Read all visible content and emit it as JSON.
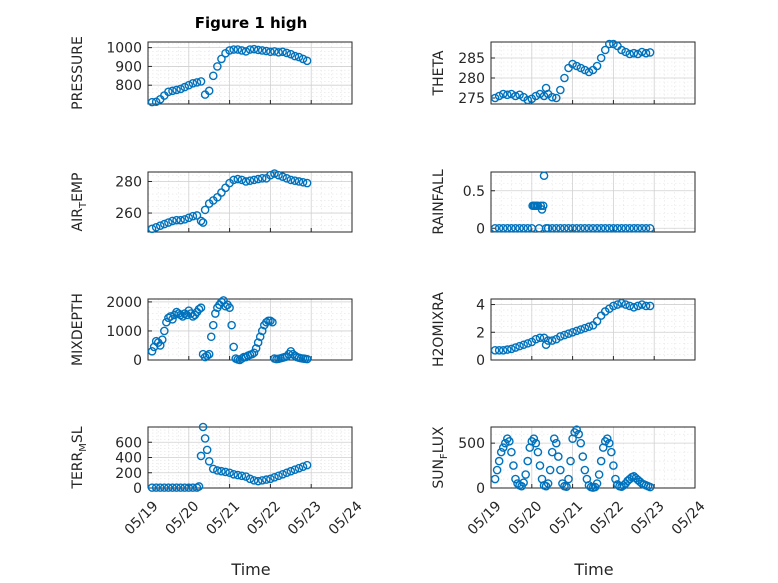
{
  "figure": {
    "title": "Figure 1 high",
    "xlabel": "Time",
    "colors": {
      "marker": "#0072bd",
      "axis": "#262626",
      "grid": "#d0d0d0"
    },
    "x_tick_labels": [
      "05/19",
      "05/20",
      "05/21",
      "05/22",
      "05/23",
      "05/24"
    ]
  },
  "chart_data": [
    {
      "id": "pressure",
      "type": "scatter",
      "ylabel": "PRESSURE",
      "ylim": [
        700,
        1030
      ],
      "yticks": [
        800,
        900,
        1000
      ],
      "grid": "major+minor",
      "x": [
        0.1,
        0.2,
        0.3,
        0.4,
        0.5,
        0.6,
        0.7,
        0.8,
        0.9,
        1.0,
        1.1,
        1.2,
        1.3,
        1.4,
        1.5,
        1.6,
        1.7,
        1.8,
        1.9,
        2.0,
        2.1,
        2.2,
        2.3,
        2.4,
        2.5,
        2.6,
        2.7,
        2.8,
        2.9,
        3.0,
        3.1,
        3.2,
        3.3,
        3.4,
        3.5,
        3.6,
        3.7,
        3.8,
        3.9
      ],
      "y": [
        710,
        712,
        725,
        745,
        765,
        770,
        775,
        780,
        790,
        800,
        810,
        815,
        820,
        750,
        770,
        850,
        900,
        940,
        970,
        985,
        990,
        990,
        985,
        980,
        990,
        992,
        988,
        985,
        982,
        978,
        980,
        975,
        978,
        972,
        965,
        955,
        950,
        940,
        930
      ]
    },
    {
      "id": "theta",
      "type": "scatter",
      "ylabel": "THETA",
      "ylim": [
        273.5,
        289
      ],
      "yticks": [
        275,
        280,
        285
      ],
      "grid": "major+minor",
      "x": [
        0.1,
        0.2,
        0.3,
        0.4,
        0.5,
        0.6,
        0.7,
        0.8,
        0.9,
        1.0,
        1.1,
        1.2,
        1.3,
        1.35,
        1.4,
        1.5,
        1.6,
        1.7,
        1.8,
        1.9,
        2.0,
        2.1,
        2.2,
        2.3,
        2.4,
        2.5,
        2.6,
        2.7,
        2.8,
        2.9,
        3.0,
        3.1,
        3.2,
        3.3,
        3.4,
        3.5,
        3.6,
        3.7,
        3.8,
        3.9
      ],
      "y": [
        275,
        275.5,
        276,
        275.8,
        276,
        275.5,
        275.8,
        275.2,
        274.5,
        274.8,
        275.5,
        276,
        275.5,
        277.5,
        276,
        275.2,
        275,
        277,
        280,
        282.5,
        283.5,
        283,
        282.5,
        282,
        281.5,
        282,
        283,
        285,
        287,
        288.5,
        288.5,
        288,
        287,
        286.5,
        286,
        286.2,
        286,
        286.5,
        286.2,
        286.4
      ]
    },
    {
      "id": "air_temp",
      "type": "scatter",
      "ylabel": "AIR",
      "ylabel_sub": "T",
      "ylabel_tail": "EMP",
      "ylim": [
        248,
        286
      ],
      "yticks": [
        260,
        280
      ],
      "grid": "major+minor",
      "x": [
        0.1,
        0.2,
        0.3,
        0.4,
        0.5,
        0.6,
        0.7,
        0.8,
        0.9,
        1.0,
        1.1,
        1.2,
        1.3,
        1.35,
        1.4,
        1.5,
        1.6,
        1.7,
        1.8,
        1.9,
        2.0,
        2.1,
        2.2,
        2.3,
        2.4,
        2.5,
        2.6,
        2.7,
        2.8,
        2.9,
        3.0,
        3.1,
        3.2,
        3.3,
        3.4,
        3.5,
        3.6,
        3.7,
        3.8,
        3.9
      ],
      "y": [
        250,
        251,
        252,
        253,
        254,
        255,
        255.5,
        255.5,
        256,
        257,
        258,
        258.5,
        255,
        254,
        262,
        266,
        268,
        270,
        273,
        276,
        279,
        281,
        281.5,
        281,
        280,
        280.5,
        281,
        281.5,
        282,
        282,
        284,
        285,
        284,
        283,
        282,
        281,
        280.5,
        280,
        279.5,
        279
      ]
    },
    {
      "id": "rainfall",
      "type": "scatter",
      "ylabel": "RAINFALL",
      "ylim": [
        -0.05,
        0.75
      ],
      "yticks": [
        0,
        0.5
      ],
      "ytick_labels": [
        "0",
        "0.5"
      ],
      "grid": "major+minor",
      "x": [
        0.1,
        0.2,
        0.3,
        0.4,
        0.5,
        0.6,
        0.7,
        0.8,
        0.9,
        1.0,
        1.02,
        1.05,
        1.08,
        1.12,
        1.15,
        1.18,
        1.22,
        1.25,
        1.28,
        1.3,
        1.35,
        1.4,
        1.5,
        1.6,
        1.7,
        1.8,
        1.9,
        2.0,
        2.1,
        2.2,
        2.3,
        2.4,
        2.5,
        2.6,
        2.7,
        2.8,
        2.9,
        3.0,
        3.1,
        3.2,
        3.3,
        3.4,
        3.5,
        3.6,
        3.7,
        3.8,
        3.9
      ],
      "y": [
        0,
        0,
        0,
        0,
        0,
        0,
        0,
        0,
        0,
        0,
        0.3,
        0.3,
        0.3,
        0.3,
        0.3,
        0,
        0.3,
        0.25,
        0.3,
        0.7,
        0,
        0,
        0,
        0,
        0,
        0,
        0,
        0,
        0,
        0,
        0,
        0,
        0,
        0,
        0,
        0,
        0,
        0,
        0,
        0,
        0,
        0,
        0,
        0,
        0,
        0,
        0
      ]
    },
    {
      "id": "mixdepth",
      "type": "scatter",
      "ylabel": "MIXDEPTH",
      "ylim": [
        0,
        2100
      ],
      "yticks": [
        0,
        1000,
        2000
      ],
      "grid": "major+minor",
      "x": [
        0.1,
        0.15,
        0.2,
        0.25,
        0.3,
        0.35,
        0.4,
        0.45,
        0.5,
        0.55,
        0.6,
        0.65,
        0.7,
        0.75,
        0.8,
        0.85,
        0.9,
        0.95,
        1.0,
        1.05,
        1.1,
        1.15,
        1.2,
        1.25,
        1.3,
        1.35,
        1.4,
        1.45,
        1.5,
        1.55,
        1.6,
        1.65,
        1.7,
        1.75,
        1.8,
        1.85,
        1.9,
        1.95,
        2.0,
        2.05,
        2.1,
        2.15,
        2.2,
        2.25,
        2.3,
        2.35,
        2.4,
        2.45,
        2.5,
        2.55,
        2.6,
        2.65,
        2.7,
        2.75,
        2.8,
        2.85,
        2.9,
        2.95,
        3.0,
        3.05,
        3.1,
        3.15,
        3.2,
        3.25,
        3.3,
        3.35,
        3.4,
        3.45,
        3.5,
        3.55,
        3.6,
        3.65,
        3.7,
        3.75,
        3.8,
        3.85,
        3.9
      ],
      "y": [
        300,
        450,
        650,
        600,
        500,
        700,
        1000,
        1300,
        1450,
        1500,
        1400,
        1550,
        1650,
        1600,
        1550,
        1500,
        1600,
        1550,
        1700,
        1600,
        1500,
        1550,
        1650,
        1750,
        1800,
        200,
        100,
        150,
        200,
        800,
        1200,
        1600,
        1800,
        1900,
        2000,
        2050,
        1850,
        1900,
        1800,
        1200,
        450,
        50,
        20,
        0,
        50,
        100,
        100,
        150,
        180,
        200,
        250,
        400,
        600,
        800,
        1000,
        1200,
        1300,
        1350,
        1350,
        1300,
        50,
        30,
        40,
        60,
        80,
        100,
        120,
        200,
        300,
        200,
        150,
        100,
        80,
        60,
        50,
        40,
        30
      ]
    },
    {
      "id": "h2omixra",
      "type": "scatter",
      "ylabel": "H2OMIXRA",
      "ylim": [
        0,
        4.4
      ],
      "yticks": [
        0,
        2,
        4
      ],
      "grid": "major+minor",
      "x": [
        0.1,
        0.2,
        0.3,
        0.4,
        0.5,
        0.6,
        0.7,
        0.8,
        0.9,
        1.0,
        1.1,
        1.2,
        1.3,
        1.35,
        1.4,
        1.5,
        1.6,
        1.7,
        1.8,
        1.9,
        2.0,
        2.1,
        2.2,
        2.3,
        2.4,
        2.5,
        2.6,
        2.7,
        2.8,
        2.9,
        3.0,
        3.1,
        3.2,
        3.3,
        3.4,
        3.5,
        3.6,
        3.7,
        3.8,
        3.9
      ],
      "y": [
        0.7,
        0.7,
        0.7,
        0.75,
        0.8,
        0.9,
        1.0,
        1.1,
        1.2,
        1.3,
        1.5,
        1.6,
        1.6,
        1.1,
        1.4,
        1.4,
        1.5,
        1.7,
        1.8,
        1.9,
        2.0,
        2.1,
        2.2,
        2.3,
        2.4,
        2.5,
        2.8,
        3.2,
        3.5,
        3.7,
        3.9,
        4.0,
        4.1,
        4.0,
        3.9,
        3.8,
        3.9,
        4.0,
        3.9,
        3.9
      ]
    },
    {
      "id": "terr_msl",
      "type": "scatter",
      "ylabel": "TERR",
      "ylabel_sub": "M",
      "ylabel_tail": "SL",
      "ylim": [
        0,
        800
      ],
      "yticks": [
        0,
        200,
        400,
        600
      ],
      "grid": "major+minor",
      "x": [
        0.1,
        0.2,
        0.3,
        0.4,
        0.5,
        0.6,
        0.7,
        0.8,
        0.9,
        1.0,
        1.1,
        1.2,
        1.25,
        1.3,
        1.35,
        1.4,
        1.45,
        1.5,
        1.6,
        1.7,
        1.8,
        1.9,
        2.0,
        2.1,
        2.2,
        2.3,
        2.4,
        2.5,
        2.6,
        2.7,
        2.8,
        2.9,
        3.0,
        3.1,
        3.2,
        3.3,
        3.4,
        3.5,
        3.6,
        3.7,
        3.8,
        3.9
      ],
      "y": [
        5,
        5,
        5,
        5,
        5,
        5,
        5,
        5,
        5,
        5,
        5,
        5,
        20,
        420,
        800,
        650,
        500,
        350,
        250,
        230,
        220,
        210,
        200,
        180,
        170,
        160,
        150,
        120,
        100,
        90,
        100,
        110,
        120,
        140,
        160,
        180,
        200,
        220,
        240,
        260,
        280,
        300
      ]
    },
    {
      "id": "sun_flux",
      "type": "scatter",
      "ylabel": "SUN",
      "ylabel_sub": "F",
      "ylabel_tail": "LUX",
      "ylim": [
        0,
        680
      ],
      "yticks": [
        0,
        500
      ],
      "grid": "major+minor",
      "x": [
        0.1,
        0.15,
        0.2,
        0.25,
        0.3,
        0.35,
        0.4,
        0.45,
        0.5,
        0.55,
        0.6,
        0.65,
        0.7,
        0.75,
        0.8,
        0.85,
        0.9,
        0.95,
        1.0,
        1.05,
        1.1,
        1.15,
        1.2,
        1.25,
        1.3,
        1.35,
        1.4,
        1.45,
        1.5,
        1.55,
        1.6,
        1.65,
        1.7,
        1.75,
        1.8,
        1.85,
        1.9,
        1.95,
        2.0,
        2.05,
        2.1,
        2.15,
        2.2,
        2.25,
        2.3,
        2.35,
        2.4,
        2.45,
        2.5,
        2.55,
        2.6,
        2.65,
        2.7,
        2.75,
        2.8,
        2.85,
        2.9,
        2.95,
        3.0,
        3.05,
        3.1,
        3.15,
        3.2,
        3.25,
        3.3,
        3.35,
        3.4,
        3.45,
        3.5,
        3.55,
        3.6,
        3.65,
        3.7,
        3.75,
        3.8,
        3.85,
        3.9
      ],
      "y": [
        100,
        200,
        300,
        400,
        450,
        500,
        550,
        520,
        400,
        250,
        100,
        50,
        30,
        20,
        60,
        150,
        300,
        450,
        520,
        550,
        500,
        400,
        250,
        100,
        30,
        20,
        50,
        200,
        400,
        550,
        500,
        350,
        200,
        50,
        20,
        15,
        100,
        300,
        550,
        620,
        650,
        600,
        500,
        350,
        200,
        100,
        30,
        10,
        5,
        10,
        50,
        150,
        300,
        450,
        520,
        550,
        500,
        400,
        250,
        100,
        40,
        20,
        15,
        30,
        50,
        80,
        100,
        120,
        130,
        110,
        90,
        70,
        50,
        40,
        30,
        20,
        10
      ]
    }
  ]
}
